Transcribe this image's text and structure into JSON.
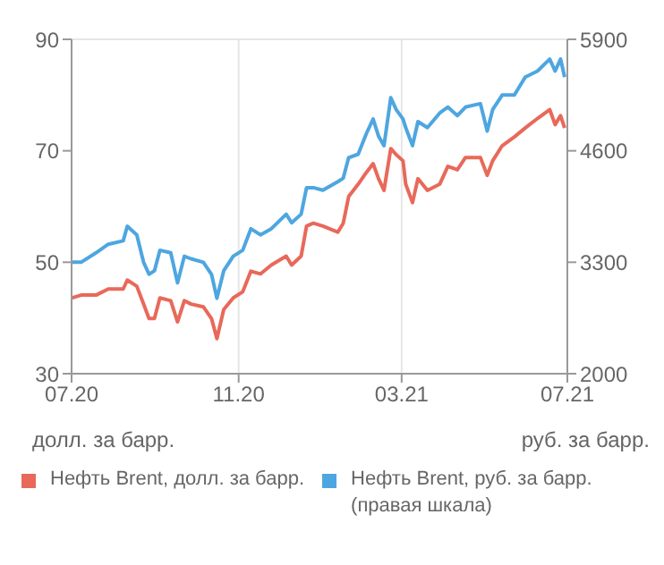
{
  "chart_data": {
    "type": "line",
    "ylabel": "долл. за барр.",
    "y2label": "руб. за барр.",
    "x": [
      "2020-07-01",
      "2020-07-08",
      "2020-07-19",
      "2020-07-28",
      "2020-08-08",
      "2020-08-11",
      "2020-08-18",
      "2020-08-23",
      "2020-08-27",
      "2020-08-31",
      "2020-09-04",
      "2020-09-12",
      "2020-09-17",
      "2020-09-22",
      "2020-09-27",
      "2020-10-06",
      "2020-10-12",
      "2020-10-16",
      "2020-10-21",
      "2020-10-28",
      "2020-11-04",
      "2020-11-10",
      "2020-11-17",
      "2020-11-25",
      "2020-12-06",
      "2020-12-10",
      "2020-12-17",
      "2020-12-21",
      "2020-12-26",
      "2021-01-02",
      "2021-01-13",
      "2021-01-17",
      "2021-01-21",
      "2021-01-28",
      "2021-02-03",
      "2021-02-08",
      "2021-02-12",
      "2021-02-16",
      "2021-02-21",
      "2021-02-25",
      "2021-03-02",
      "2021-03-04",
      "2021-03-09",
      "2021-03-13",
      "2021-03-20",
      "2021-03-29",
      "2021-04-04",
      "2021-04-11",
      "2021-04-17",
      "2021-04-28",
      "2021-05-03",
      "2021-05-07",
      "2021-05-14",
      "2021-05-23",
      "2021-05-31",
      "2021-06-09",
      "2021-06-18",
      "2021-06-22",
      "2021-06-26",
      "2021-06-29"
    ],
    "series": [
      {
        "name": "Нефть Brent, долл. за барр.",
        "color": "#e8695a",
        "values": [
          43.6,
          44.1,
          44.1,
          45.2,
          45.2,
          46.8,
          45.7,
          42.5,
          39.9,
          39.9,
          43.6,
          43.1,
          39.3,
          43.1,
          42.5,
          42,
          39.9,
          36.3,
          41.5,
          43.6,
          44.7,
          48.4,
          47.9,
          49.5,
          51.1,
          49.5,
          51.1,
          56.5,
          57,
          56.5,
          55.4,
          57,
          61.8,
          64,
          66.1,
          67.7,
          65,
          62.9,
          70.4,
          69.3,
          68.2,
          64,
          60.7,
          65,
          62.9,
          64,
          67.2,
          66.6,
          68.8,
          68.8,
          65.6,
          68.2,
          70.9,
          72.5,
          74.1,
          75.8,
          77.4,
          74.7,
          76.3,
          74.1
        ]
      },
      {
        "name": "Нефть Brent, руб. за барр.\n(правая шкала)",
        "color": "#4ea6e0",
        "axis": "y2",
        "values": [
          3300,
          3300,
          3410,
          3510,
          3550,
          3720,
          3620,
          3300,
          3160,
          3200,
          3440,
          3410,
          3060,
          3370,
          3340,
          3300,
          3160,
          2880,
          3200,
          3370,
          3440,
          3690,
          3620,
          3690,
          3860,
          3760,
          3860,
          4170,
          4170,
          4140,
          4240,
          4280,
          4520,
          4560,
          4800,
          4970,
          4770,
          4660,
          5220,
          5080,
          4970,
          4870,
          4660,
          4940,
          4870,
          5040,
          5110,
          5010,
          5110,
          5150,
          4830,
          5080,
          5250,
          5250,
          5460,
          5530,
          5670,
          5530,
          5670,
          5460
        ]
      }
    ],
    "xlim": [
      "2020-07-01",
      "2021-07-01"
    ],
    "xticks": [
      {
        "value": "2020-07-01",
        "label": "07.20"
      },
      {
        "value": "2020-11-01",
        "label": "11.20"
      },
      {
        "value": "2021-03-01",
        "label": "03.21"
      },
      {
        "value": "2021-07-01",
        "label": "07.21"
      }
    ],
    "ylim": [
      30,
      90
    ],
    "yticks": [
      30,
      50,
      70,
      90
    ],
    "y2lim": [
      2000,
      5900
    ],
    "y2ticks": [
      2000,
      3300,
      4600,
      5900
    ],
    "grid": true,
    "legend": "bottom",
    "line_style": "solid",
    "marker": "none"
  }
}
